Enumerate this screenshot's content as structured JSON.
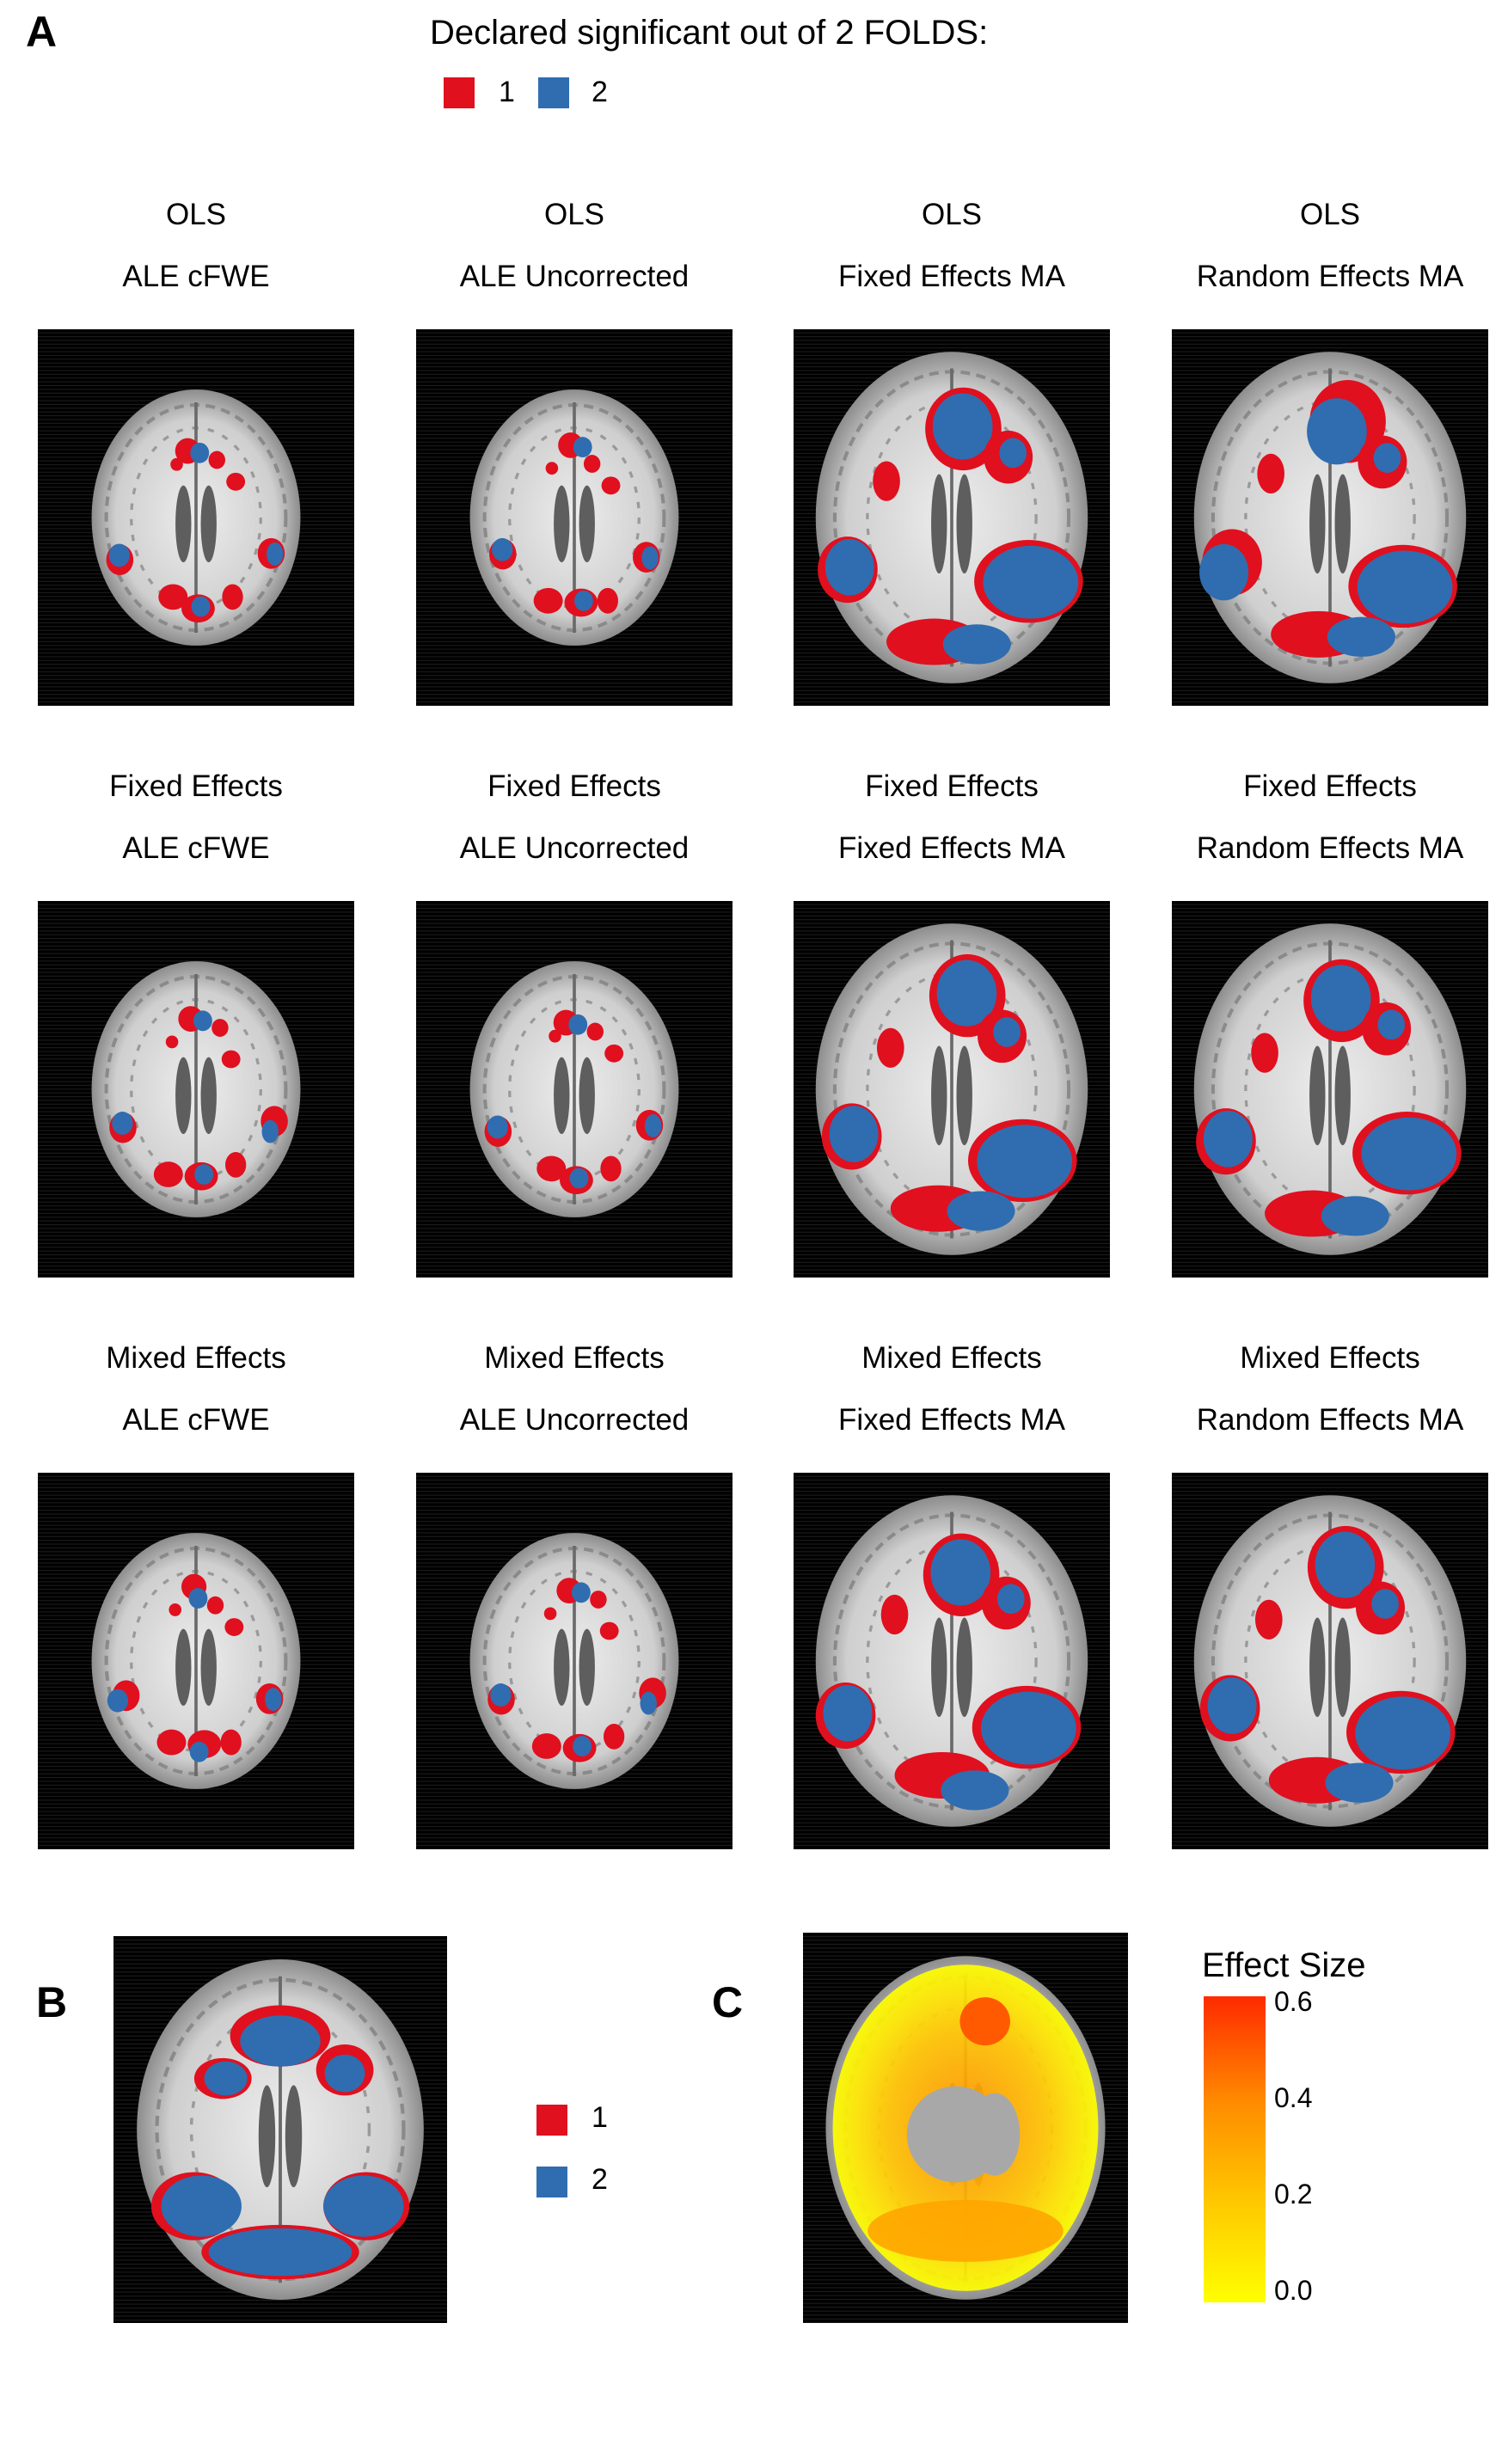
{
  "colors": {
    "fold1": "#e0101f",
    "fold2": "#2f6db0",
    "cb_low": "#ffff00",
    "cb_high": "#ff0000"
  },
  "panel_a": {
    "letter": "A",
    "legend_title": "Declared significant out of 2 FOLDS:",
    "legend": [
      {
        "label": "1",
        "color": "#e0101f"
      },
      {
        "label": "2",
        "color": "#2f6db0"
      }
    ],
    "rows": [
      {
        "name": "OLS",
        "cells": [
          {
            "line1": "OLS",
            "line2": "ALE cFWE"
          },
          {
            "line1": "OLS",
            "line2": "ALE Uncorrected"
          },
          {
            "line1": "OLS",
            "line2": "Fixed Effects MA"
          },
          {
            "line1": "OLS",
            "line2": "Random Effects MA"
          }
        ]
      },
      {
        "name": "Fixed Effects",
        "cells": [
          {
            "line1": "Fixed Effects",
            "line2": "ALE cFWE"
          },
          {
            "line1": "Fixed Effects",
            "line2": "ALE Uncorrected"
          },
          {
            "line1": "Fixed Effects",
            "line2": "Fixed Effects MA"
          },
          {
            "line1": "Fixed Effects",
            "line2": "Random Effects MA"
          }
        ]
      },
      {
        "name": "Mixed Effects",
        "cells": [
          {
            "line1": "Mixed Effects",
            "line2": "ALE cFWE"
          },
          {
            "line1": "Mixed Effects",
            "line2": "ALE Uncorrected"
          },
          {
            "line1": "Mixed Effects",
            "line2": "Fixed Effects MA"
          },
          {
            "line1": "Mixed Effects",
            "line2": "Random Effects MA"
          }
        ]
      }
    ]
  },
  "panel_b": {
    "letter": "B",
    "legend": [
      {
        "label": "1",
        "color": "#e0101f"
      },
      {
        "label": "2",
        "color": "#2f6db0"
      }
    ]
  },
  "panel_c": {
    "letter": "C",
    "colorbar_title": "Effect Size",
    "ticks": [
      "0.6",
      "0.4",
      "0.2",
      "0.0"
    ],
    "range": [
      0,
      0.6
    ]
  }
}
